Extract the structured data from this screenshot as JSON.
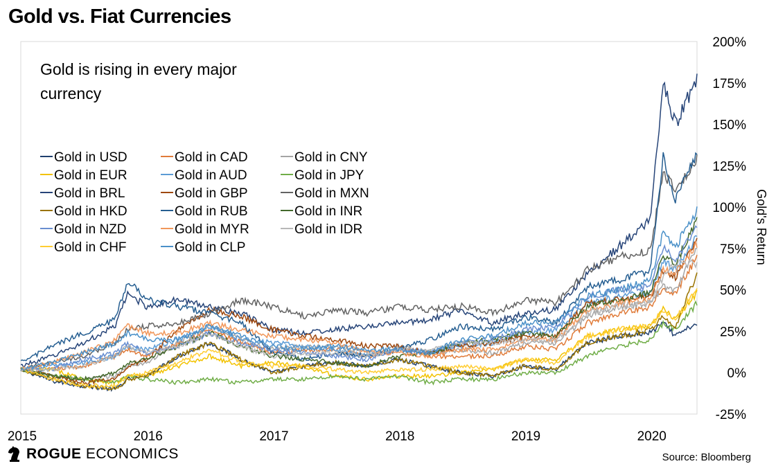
{
  "title": "Gold vs. Fiat Currencies",
  "brand": {
    "name_bold": "ROGUE",
    "name_rest": "ECONOMICS"
  },
  "source": "Source: Bloomberg",
  "chart_data": {
    "type": "line",
    "title": "Gold vs. Fiat Currencies",
    "annotation": "Gold is rising in every major currency",
    "annotation_lines": [
      "Gold is rising in every major",
      "currency"
    ],
    "xlabel": "",
    "ylabel": "Gold's Return",
    "ylim": [
      -25,
      200
    ],
    "y_ticks": [
      -25,
      0,
      25,
      50,
      75,
      100,
      125,
      150,
      175,
      200
    ],
    "y_tick_labels": [
      "-25%",
      "0%",
      "25%",
      "50%",
      "75%",
      "100%",
      "125%",
      "150%",
      "175%",
      "200%"
    ],
    "xlim": [
      2015,
      2020.37
    ],
    "x_ticks": [
      2015,
      2016,
      2017,
      2018,
      2019,
      2020
    ],
    "x_tick_labels": [
      "2015",
      "2016",
      "2017",
      "2018",
      "2019",
      "2020"
    ],
    "legend_placement": "top-left",
    "x": [
      2015.0,
      2015.25,
      2015.5,
      2015.75,
      2015.85,
      2016.0,
      2016.25,
      2016.5,
      2016.75,
      2017.0,
      2017.25,
      2017.5,
      2017.75,
      2018.0,
      2018.25,
      2018.5,
      2018.75,
      2019.0,
      2019.25,
      2019.5,
      2019.75,
      2020.0,
      2020.1,
      2020.2,
      2020.37
    ],
    "series": [
      {
        "name": "Gold in USD",
        "color": "#1f3f6e",
        "values": [
          2,
          -5,
          -8,
          -10,
          -4,
          -2,
          10,
          18,
          8,
          0,
          4,
          6,
          4,
          8,
          4,
          0,
          -2,
          4,
          2,
          18,
          22,
          24,
          30,
          22,
          30
        ]
      },
      {
        "name": "Gold in CAD",
        "color": "#e07b39",
        "values": [
          2,
          2,
          4,
          10,
          14,
          10,
          18,
          26,
          18,
          12,
          14,
          14,
          10,
          14,
          10,
          10,
          10,
          16,
          14,
          30,
          36,
          40,
          52,
          48,
          70
        ]
      },
      {
        "name": "Gold in CNY",
        "color": "#a5a5a5",
        "values": [
          2,
          -2,
          -4,
          -2,
          4,
          6,
          18,
          28,
          20,
          14,
          16,
          16,
          12,
          16,
          12,
          14,
          12,
          18,
          18,
          34,
          40,
          42,
          52,
          50,
          76
        ]
      },
      {
        "name": "Gold in EUR",
        "color": "#f2c200",
        "values": [
          2,
          2,
          -4,
          -6,
          -2,
          -2,
          4,
          10,
          4,
          6,
          4,
          -2,
          -4,
          -2,
          -2,
          0,
          2,
          8,
          8,
          22,
          26,
          28,
          40,
          32,
          48
        ]
      },
      {
        "name": "Gold in AUD",
        "color": "#5b9bd5",
        "values": [
          2,
          4,
          6,
          10,
          16,
          14,
          20,
          28,
          20,
          18,
          16,
          14,
          10,
          14,
          12,
          16,
          18,
          24,
          26,
          42,
          46,
          48,
          68,
          62,
          82
        ]
      },
      {
        "name": "Gold in JPY",
        "color": "#70ad47",
        "values": [
          2,
          -2,
          -4,
          -6,
          -2,
          -4,
          -6,
          -4,
          -6,
          -4,
          -4,
          -2,
          -4,
          -2,
          -6,
          -4,
          -4,
          0,
          0,
          10,
          16,
          20,
          30,
          26,
          42
        ]
      },
      {
        "name": "Gold in BRL",
        "color": "#264478",
        "values": [
          4,
          10,
          18,
          28,
          48,
          40,
          44,
          40,
          36,
          26,
          24,
          26,
          28,
          30,
          32,
          38,
          30,
          36,
          38,
          60,
          76,
          92,
          175,
          150,
          178
        ]
      },
      {
        "name": "Gold in GBP",
        "color": "#9e480e",
        "values": [
          2,
          -2,
          -6,
          -4,
          4,
          8,
          26,
          38,
          34,
          26,
          22,
          20,
          16,
          16,
          12,
          16,
          18,
          22,
          22,
          42,
          44,
          46,
          62,
          58,
          82
        ]
      },
      {
        "name": "Gold in MXN",
        "color": "#636363",
        "values": [
          2,
          6,
          10,
          18,
          26,
          28,
          30,
          36,
          44,
          40,
          34,
          38,
          36,
          40,
          38,
          40,
          36,
          44,
          42,
          62,
          70,
          74,
          120,
          112,
          128
        ]
      },
      {
        "name": "Gold in HKD",
        "color": "#997300",
        "values": [
          2,
          -4,
          -8,
          -10,
          -4,
          -2,
          10,
          18,
          8,
          0,
          4,
          6,
          4,
          8,
          4,
          0,
          -2,
          4,
          2,
          18,
          22,
          26,
          34,
          28,
          60
        ]
      },
      {
        "name": "Gold in RUB",
        "color": "#255e91",
        "values": [
          6,
          16,
          24,
          32,
          56,
          44,
          40,
          36,
          30,
          12,
          8,
          12,
          10,
          14,
          20,
          28,
          26,
          34,
          30,
          52,
          56,
          62,
          130,
          104,
          134
        ]
      },
      {
        "name": "Gold in INR",
        "color": "#43682b",
        "values": [
          2,
          -2,
          -4,
          0,
          6,
          8,
          16,
          24,
          16,
          10,
          8,
          6,
          4,
          10,
          12,
          18,
          20,
          24,
          22,
          40,
          44,
          48,
          70,
          66,
          92
        ]
      },
      {
        "name": "Gold in NZD",
        "color": "#698ed0",
        "values": [
          2,
          2,
          8,
          12,
          18,
          12,
          16,
          24,
          18,
          14,
          12,
          10,
          8,
          14,
          12,
          18,
          20,
          26,
          28,
          46,
          50,
          52,
          76,
          68,
          88
        ]
      },
      {
        "name": "Gold in MYR",
        "color": "#f1975a",
        "values": [
          2,
          6,
          12,
          20,
          28,
          24,
          24,
          30,
          26,
          22,
          20,
          18,
          12,
          12,
          10,
          14,
          14,
          20,
          20,
          38,
          42,
          44,
          62,
          60,
          78
        ]
      },
      {
        "name": "Gold in IDR",
        "color": "#b7b7b7",
        "values": [
          2,
          2,
          4,
          10,
          16,
          12,
          16,
          24,
          16,
          10,
          12,
          12,
          10,
          14,
          14,
          18,
          18,
          20,
          20,
          36,
          40,
          42,
          58,
          66,
          66
        ]
      },
      {
        "name": "Gold in CHF",
        "color": "#ffcd33",
        "values": [
          2,
          -4,
          -8,
          -8,
          -2,
          0,
          6,
          14,
          6,
          4,
          4,
          2,
          0,
          2,
          2,
          4,
          2,
          8,
          6,
          22,
          26,
          28,
          38,
          32,
          52
        ]
      },
      {
        "name": "Gold in CLP",
        "color": "#4a90c8",
        "values": [
          2,
          6,
          12,
          18,
          24,
          20,
          20,
          28,
          22,
          16,
          14,
          16,
          14,
          14,
          12,
          20,
          22,
          30,
          30,
          46,
          50,
          56,
          84,
          76,
          98
        ]
      }
    ]
  }
}
